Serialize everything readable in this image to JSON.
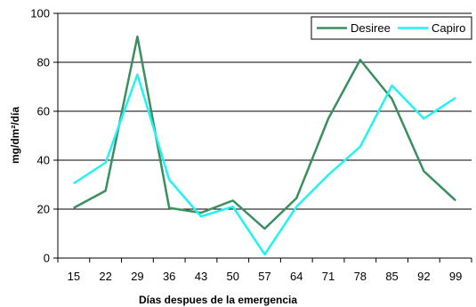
{
  "chart_data": {
    "type": "line",
    "title": "",
    "xlabel": "Días despues de la emergencia",
    "ylabel": "mg/dm²/día",
    "categories": [
      "15",
      "22",
      "29",
      "36",
      "43",
      "50",
      "57",
      "64",
      "71",
      "78",
      "85",
      "92",
      "99"
    ],
    "ylim": [
      0,
      100
    ],
    "yticks": [
      0,
      20,
      40,
      60,
      80,
      100
    ],
    "grid": "horizontal",
    "legend_position": "top-right",
    "series": [
      {
        "name": "Desiree",
        "color": "#3a8f5e",
        "values": [
          20.5,
          27.5,
          90.5,
          20.5,
          18.5,
          23.5,
          12,
          24.5,
          57,
          81,
          65,
          35.5,
          23.5
        ]
      },
      {
        "name": "Capiro",
        "color": "#22f2f2",
        "values": [
          30.5,
          39,
          75,
          32,
          17,
          21,
          1.5,
          21,
          34,
          45.5,
          70.5,
          57,
          65.5
        ]
      }
    ]
  }
}
